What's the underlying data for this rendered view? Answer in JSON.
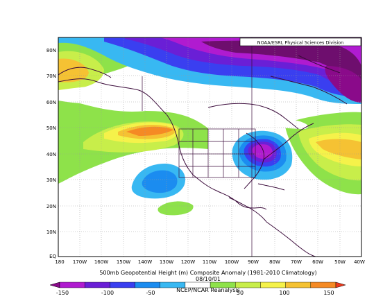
{
  "credit": "NOAA/ESRL Physical Sciences Division",
  "title": "500mb Geopotential Height (m) Composite Anomaly (1981-2010 Climatology)",
  "date_label": "08/10/01",
  "source": "NCEP/NCAR Reanalysis",
  "lat_ticks": [
    "EQ",
    "10N",
    "20N",
    "30N",
    "40N",
    "50N",
    "60N",
    "70N",
    "80N"
  ],
  "lon_ticks": [
    "180",
    "170W",
    "160W",
    "150W",
    "140W",
    "130W",
    "120W",
    "110W",
    "100W",
    "90W",
    "80W",
    "70W",
    "60W",
    "50W",
    "40W"
  ],
  "colorbar": {
    "labels": [
      "-150",
      "-100",
      "-50",
      "50",
      "100",
      "150"
    ],
    "colors": [
      "#8a0a8a",
      "#b01bd0",
      "#6a1fd6",
      "#3a3ff0",
      "#1b8cf0",
      "#38b8f2",
      "#ffffff",
      "#8ee24a",
      "#c8ee4a",
      "#f5f24a",
      "#f5c233",
      "#f58a24",
      "#ef3a1c"
    ]
  },
  "chart_data": {
    "type": "heatmap",
    "title": "500mb Geopotential Height (m) Composite Anomaly (1981-2010 Climatology)",
    "date": "08/10/01",
    "units": "m",
    "colorbar_ticks": [
      -150,
      -100,
      -50,
      50,
      100,
      150
    ],
    "lat_range": [
      0,
      85
    ],
    "lon_range": [
      -180,
      -40
    ],
    "features": [
      {
        "type": "high",
        "lon": -140,
        "lat": 47,
        "value": 100
      },
      {
        "type": "high",
        "lon": -177,
        "lat": 70,
        "value": 100
      },
      {
        "type": "high",
        "lon": -50,
        "lat": 43,
        "value": 100
      },
      {
        "type": "low",
        "lon": -78,
        "lat": 40,
        "value": -150
      },
      {
        "type": "low",
        "lon": -135,
        "lat": 31,
        "value": -75
      },
      {
        "type": "low",
        "lon": -95,
        "lat": 78,
        "value": -150
      }
    ]
  }
}
